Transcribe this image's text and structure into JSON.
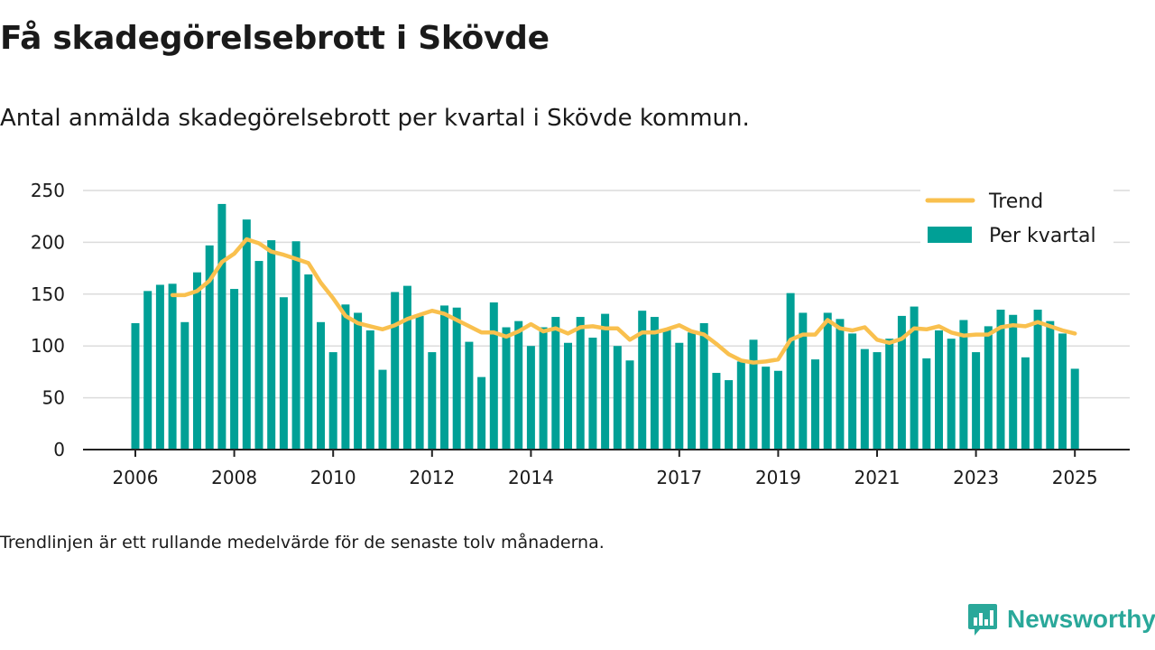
{
  "title": "Få skadegörelsebrott i Skövde",
  "subtitle": "Antal anmälda skadegörelsebrott per kvartal i Skövde kommun.",
  "footnote": "Trendlinjen är ett rullande medelvärde för de senaste tolv månaderna.",
  "brand": {
    "name": "Newsworthy",
    "color": "#2aa89a"
  },
  "colors": {
    "bars": "#00a096",
    "trend": "#f9c04e",
    "grid": "#dcdcdc",
    "axis": "#222222"
  },
  "chart_data": {
    "type": "bar",
    "ylim": [
      0,
      250
    ],
    "yticks": [
      0,
      50,
      100,
      150,
      200,
      250
    ],
    "xtick_labels": [
      "2006",
      "2008",
      "2010",
      "2012",
      "2014",
      "2017",
      "2019",
      "2021",
      "2023",
      "2025"
    ],
    "grid": true,
    "legend_position": "top-right",
    "series": [
      {
        "name": "Per kvartal",
        "kind": "bar",
        "values": [
          122,
          153,
          159,
          160,
          123,
          171,
          197,
          237,
          155,
          222,
          182,
          202,
          147,
          201,
          169,
          123,
          94,
          140,
          132,
          115,
          77,
          152,
          158,
          129,
          94,
          139,
          137,
          104,
          70,
          142,
          118,
          124,
          100,
          118,
          128,
          103,
          128,
          108,
          131,
          100,
          86,
          134,
          128,
          116,
          103,
          113,
          122,
          74,
          67,
          85,
          106,
          80,
          76,
          151,
          132,
          87,
          132,
          126,
          112,
          97,
          94,
          107,
          129,
          138,
          88,
          115,
          107,
          125,
          94,
          119,
          135,
          130,
          89,
          135,
          124,
          112,
          78
        ]
      },
      {
        "name": "Trend",
        "kind": "line",
        "values": [
          null,
          null,
          null,
          149,
          149,
          153,
          163,
          181,
          189,
          203,
          199,
          191,
          188,
          184,
          180,
          161,
          146,
          129,
          122,
          119,
          116,
          120,
          126,
          130,
          134,
          131,
          125,
          119,
          113,
          113,
          109,
          114,
          121,
          114,
          117,
          112,
          118,
          119,
          117,
          117,
          106,
          113,
          113,
          116,
          120,
          114,
          111,
          102,
          92,
          86,
          84,
          85,
          87,
          106,
          111,
          111,
          125,
          117,
          115,
          118,
          106,
          103,
          107,
          117,
          116,
          119,
          113,
          110,
          111,
          111,
          118,
          120,
          119,
          123,
          119,
          115,
          112
        ]
      }
    ]
  }
}
